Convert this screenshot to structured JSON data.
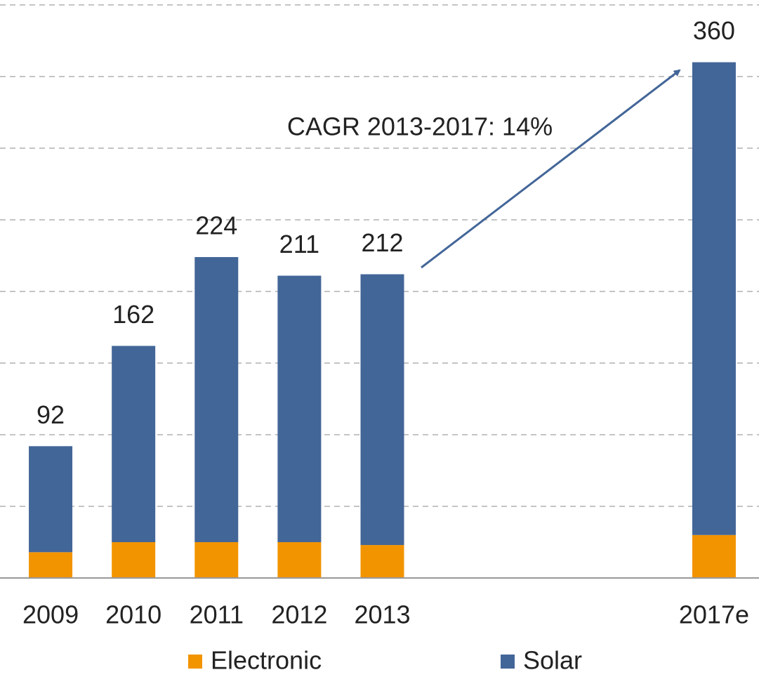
{
  "chart_data": {
    "type": "stacked_bar",
    "categories": [
      "2009",
      "2010",
      "2011",
      "2012",
      "2013",
      null,
      null,
      null,
      "2017e"
    ],
    "series": [
      {
        "name": "Electronic",
        "color": "#f29400",
        "values": [
          18,
          25,
          25,
          25,
          23,
          null,
          null,
          null,
          30
        ]
      },
      {
        "name": "Solar",
        "color": "#436698",
        "values": [
          74,
          137,
          199,
          186,
          189,
          null,
          null,
          null,
          330
        ]
      }
    ],
    "totals": [
      92,
      162,
      224,
      211,
      212,
      null,
      null,
      null,
      360
    ],
    "annotation": "CAGR 2013-2017: 14%",
    "ylim": [
      0,
      400
    ],
    "yticks": [
      0,
      50,
      100,
      150,
      200,
      250,
      300,
      350,
      400
    ],
    "grid": true,
    "legend": "bottom"
  }
}
